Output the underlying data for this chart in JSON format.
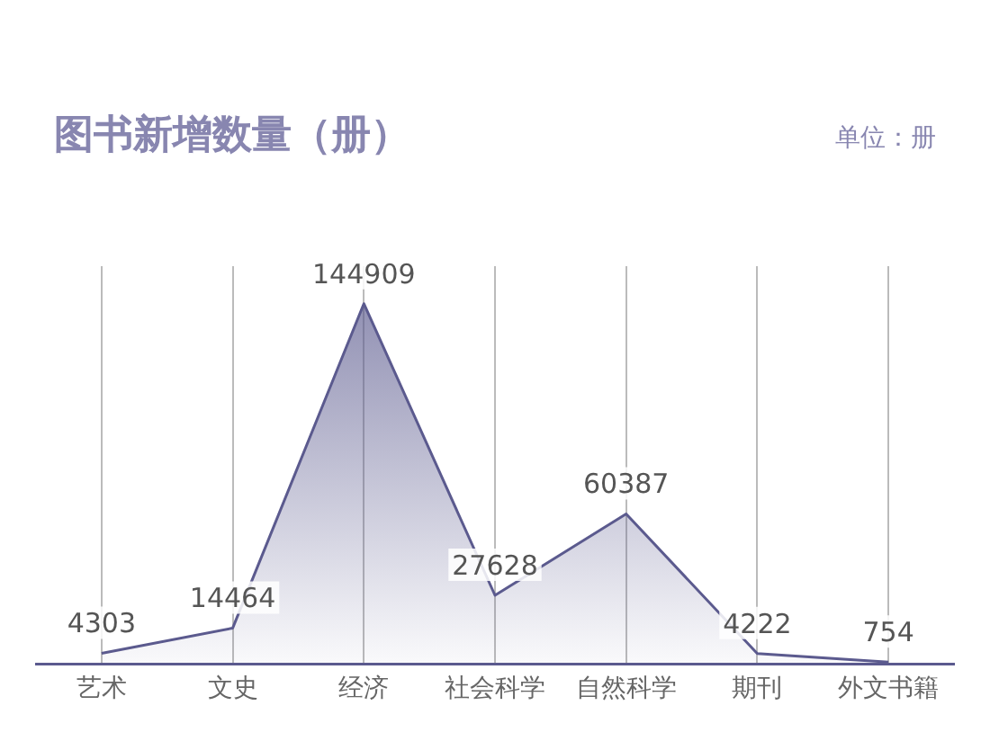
{
  "chart_data": {
    "type": "area",
    "title": "图书新增数量（册）",
    "annotations": [
      "单位：册"
    ],
    "categories": [
      "艺术",
      "文史",
      "经济",
      "社会科学",
      "自然科学",
      "期刊",
      "外文书籍"
    ],
    "series": [
      {
        "color": "#5b5a8e",
        "values": [
          4303,
          14464,
          144909,
          27628,
          60387,
          4222,
          754
        ]
      }
    ],
    "data_labels": true,
    "grid": "x"
  }
}
